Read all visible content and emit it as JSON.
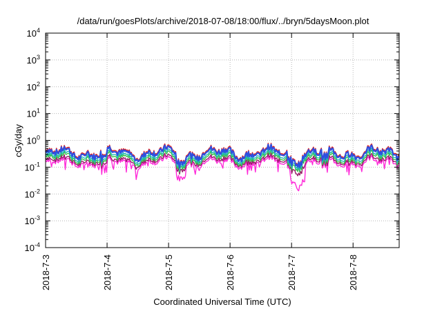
{
  "chart_data": {
    "type": "line",
    "title": "/data/run/goesPlots/archive/2018-07-08/18:00/flux/../bryn/5daysMoon.plot",
    "xlabel": "Coordinated Universal Time (UTC)",
    "ylabel": "cGy/day",
    "y_scale": "log",
    "ylim": [
      0.0001,
      10000
    ],
    "y_ticks": [
      {
        "base": "10",
        "exp": "4"
      },
      {
        "base": "10",
        "exp": "3"
      },
      {
        "base": "10",
        "exp": "2"
      },
      {
        "base": "10",
        "exp": "1"
      },
      {
        "base": "10",
        "exp": "0"
      },
      {
        "base": "10",
        "exp": "-1"
      },
      {
        "base": "10",
        "exp": "-2"
      },
      {
        "base": "10",
        "exp": "-3"
      },
      {
        "base": "10",
        "exp": "-4"
      }
    ],
    "x_ticks": [
      "2018-7-3",
      "2018-7-4",
      "2018-7-5",
      "2018-7-6",
      "2018-7-7",
      "2018-7-8"
    ],
    "xlim_days": [
      0,
      5.75
    ],
    "grid": true,
    "series": [
      {
        "color": "#e01f1f",
        "level": 0.37
      },
      {
        "color": "#2f4fe0",
        "level": 0.33
      },
      {
        "color": "#22b8b8",
        "level": 0.26
      },
      {
        "color": "#39c24a",
        "level": 0.22
      },
      {
        "color": "#9b1a6b",
        "level": 0.18
      },
      {
        "color": "#ff2ad9",
        "level": 0.15
      }
    ]
  }
}
